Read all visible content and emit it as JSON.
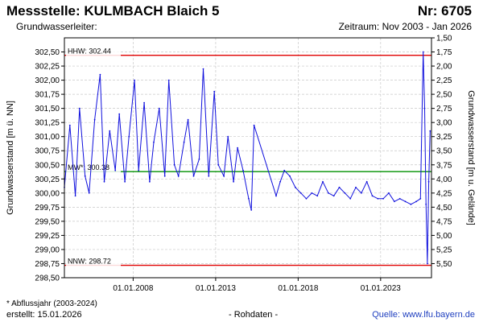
{
  "header": {
    "title": "Messstelle: KULMBACH Blaich 5",
    "number": "Nr: 6705",
    "aquifer": "Grundwasserleiter:",
    "period": "Zeitraum: Nov 2003 - Jan 2026"
  },
  "footer": {
    "footnote": "* Abflussjahr (2003-2024)",
    "created": "erstellt:  15.01.2026",
    "data_type": "- Rohdaten -",
    "source": "Quelle: www.lfu.bayern.de"
  },
  "colors": {
    "series": "#1010dd",
    "hhw": "#e00000",
    "nnw": "#e00000",
    "mw": "#009000",
    "grid": "#c8c8c8"
  },
  "chart_data": {
    "type": "line",
    "title": "Messstelle: KULMBACH Blaich 5",
    "ylabel": "Grundwasserstand [m ü. NN]",
    "y2label": "Grundwasserstand [m u. Gelände]",
    "xlim": [
      "2003-11-01",
      "2026-01-31"
    ],
    "ylim": [
      298.5,
      302.75
    ],
    "y2lim": [
      1.5,
      5.75
    ],
    "grid": true,
    "x_ticks": [
      "01.01.2008",
      "01.01.2013",
      "01.01.2018",
      "01.01.2023"
    ],
    "y_ticks": [
      "302,50",
      "302,25",
      "302,00",
      "301,75",
      "301,50",
      "301,25",
      "301,00",
      "300,75",
      "300,50",
      "300,25",
      "300,00",
      "299,75",
      "299,50",
      "299,25",
      "299,00",
      "298,75",
      "298,50"
    ],
    "y2_ticks": [
      "1,50",
      "1,75",
      "2,00",
      "2,25",
      "2,50",
      "2,75",
      "3,00",
      "3,25",
      "3,50",
      "3,75",
      "4,00",
      "4,25",
      "4,50",
      "4,75",
      "5,00",
      "5,25",
      "5,50"
    ],
    "reference_lines": [
      {
        "label": "HHW: 302.44",
        "value": 302.44,
        "color": "#e00000"
      },
      {
        "label": "MW*: 300.38",
        "value": 300.38,
        "color": "#009000"
      },
      {
        "label": "NNW: 298.72",
        "value": 298.72,
        "color": "#e00000"
      }
    ],
    "series": [
      {
        "color": "#1010dd",
        "x": [
          "2003-11-01",
          "2004-03-01",
          "2004-07-01",
          "2004-10-01",
          "2005-02-01",
          "2005-05-01",
          "2005-09-01",
          "2006-01-01",
          "2006-04-01",
          "2006-08-01",
          "2006-12-01",
          "2007-03-01",
          "2007-07-01",
          "2007-10-01",
          "2008-02-01",
          "2008-05-01",
          "2008-09-01",
          "2009-01-01",
          "2009-04-01",
          "2009-08-01",
          "2009-12-01",
          "2010-03-01",
          "2010-07-01",
          "2010-10-01",
          "2011-02-01",
          "2011-05-01",
          "2011-09-01",
          "2012-01-01",
          "2012-04-01",
          "2012-08-01",
          "2012-12-01",
          "2013-03-01",
          "2013-07-01",
          "2013-10-01",
          "2014-02-01",
          "2014-05-01",
          "2014-09-01",
          "2015-01-01",
          "2015-03-01",
          "2015-05-01",
          "2016-09-01",
          "2016-12-01",
          "2017-03-01",
          "2017-07-01",
          "2017-11-01",
          "2018-03-01",
          "2018-07-01",
          "2018-11-01",
          "2019-03-01",
          "2019-07-01",
          "2019-11-01",
          "2020-03-01",
          "2020-07-01",
          "2020-11-01",
          "2021-03-01",
          "2021-07-01",
          "2021-11-01",
          "2022-03-01",
          "2022-07-01",
          "2022-11-01",
          "2023-03-01",
          "2023-07-01",
          "2023-11-01",
          "2024-03-01",
          "2024-07-01",
          "2024-11-01",
          "2025-03-01",
          "2025-06-01",
          "2025-08-01",
          "2025-09-01",
          "2025-10-01",
          "2025-11-01",
          "2025-12-01",
          "2026-01-01"
        ],
        "y": [
          300.1,
          301.2,
          299.95,
          301.5,
          300.3,
          300.0,
          301.3,
          302.1,
          300.2,
          301.1,
          300.4,
          301.4,
          300.2,
          301.0,
          302.0,
          300.4,
          301.6,
          300.2,
          300.9,
          301.5,
          300.3,
          302.0,
          300.5,
          300.3,
          300.9,
          301.3,
          300.3,
          300.6,
          302.2,
          300.3,
          301.8,
          300.5,
          300.3,
          301.0,
          300.2,
          300.8,
          300.4,
          299.9,
          299.7,
          301.2,
          299.95,
          300.2,
          300.4,
          300.3,
          300.1,
          300.0,
          299.9,
          300.0,
          299.95,
          300.2,
          300.0,
          299.95,
          300.1,
          300.0,
          299.9,
          300.1,
          300.0,
          300.2,
          299.95,
          299.9,
          299.9,
          300.0,
          299.85,
          299.9,
          299.85,
          299.8,
          299.85,
          299.9,
          302.5,
          301.5,
          299.8,
          298.75,
          300.2,
          301.1
        ]
      }
    ]
  }
}
